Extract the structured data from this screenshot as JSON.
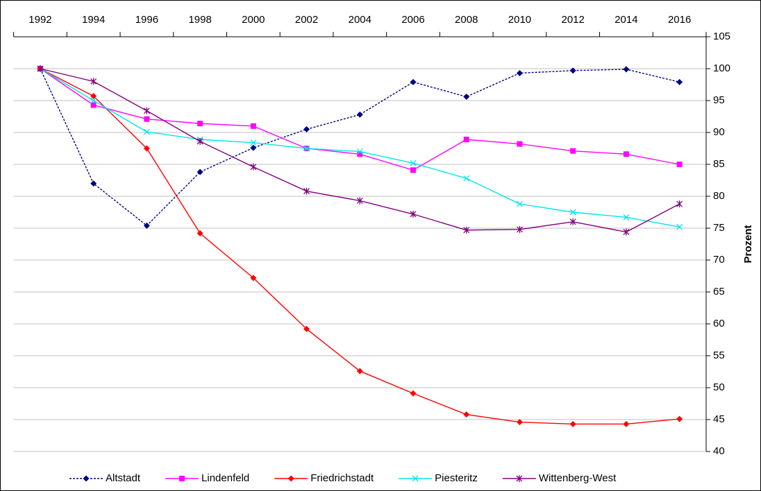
{
  "chart_data": {
    "type": "line",
    "y_label": "Prozent",
    "categories": [
      "1992",
      "1994",
      "1996",
      "1998",
      "2000",
      "2002",
      "2004",
      "2006",
      "2008",
      "2010",
      "2012",
      "2014",
      "2016"
    ],
    "series": [
      {
        "name": "Altstadt",
        "color": "#000080",
        "dash": true,
        "marker": "diamond",
        "values": [
          100,
          82,
          75.4,
          83.8,
          87.6,
          90.5,
          92.8,
          97.9,
          95.6,
          99.3,
          99.7,
          99.9,
          97.9
        ]
      },
      {
        "name": "Lindenfeld",
        "color": "#ff00ff",
        "dash": false,
        "marker": "square",
        "values": [
          100,
          94.3,
          92.1,
          91.4,
          91.0,
          87.5,
          86.6,
          84.1,
          88.9,
          88.2,
          87.1,
          86.6,
          85.0
        ]
      },
      {
        "name": "Friedrichstadt",
        "color": "#ff0000",
        "dash": false,
        "marker": "diamond",
        "values": [
          100,
          95.7,
          87.5,
          74.2,
          67.2,
          59.2,
          52.6,
          49.1,
          45.8,
          44.6,
          44.3,
          44.3,
          45.1
        ]
      },
      {
        "name": "Piesteritz",
        "color": "#00e5ee",
        "dash": false,
        "marker": "x",
        "values": [
          100,
          95.0,
          90.1,
          88.9,
          88.4,
          87.5,
          87.0,
          85.2,
          82.8,
          78.8,
          77.5,
          76.7,
          75.2
        ]
      },
      {
        "name": "Wittenberg-West",
        "color": "#800080",
        "dash": false,
        "marker": "star",
        "values": [
          100,
          98.0,
          93.4,
          88.6,
          84.6,
          80.8,
          79.3,
          77.2,
          74.7,
          74.8,
          76.0,
          74.4,
          78.8
        ]
      }
    ],
    "ylim": [
      40,
      105
    ],
    "yticks": [
      40,
      45,
      50,
      55,
      60,
      65,
      70,
      75,
      80,
      85,
      90,
      95,
      100,
      105
    ],
    "grid": true,
    "y_axis_side": "right",
    "x_axis_side": "top",
    "legend": "bottom"
  }
}
